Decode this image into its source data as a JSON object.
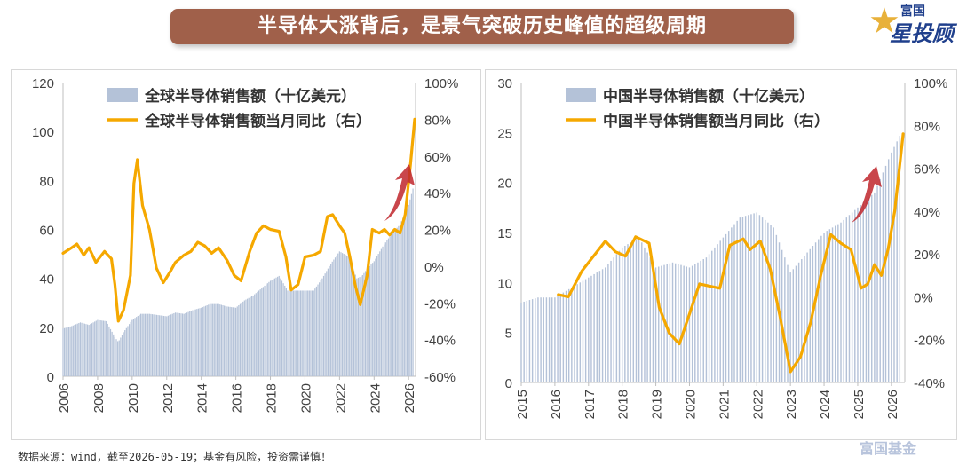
{
  "header": {
    "title": "半导体大涨背后，是景气突破历史峰值的超级周期"
  },
  "brand": {
    "small": "富国",
    "big": "星投顾",
    "watermark": "富国基金"
  },
  "footnote": "数据来源：wind，截至2026-05-19；基金有风险，投资需谨慎！",
  "colors": {
    "bar": "#b4c2d8",
    "line": "#f5a800",
    "arrow": "#c0262c",
    "title_bg": "#a0604a"
  },
  "chart_data": [
    {
      "type": "bar+line",
      "legend": [
        "全球半导体销售额（十亿美元）",
        "全球半导体销售额当月同比（右）"
      ],
      "x_ticks": [
        "2006",
        "2008",
        "2010",
        "2012",
        "2014",
        "2016",
        "2018",
        "2020",
        "2022",
        "2024",
        "2026"
      ],
      "x_range": [
        2006,
        2026.4
      ],
      "y_left_ticks": [
        "0",
        "20",
        "40",
        "60",
        "80",
        "100",
        "120"
      ],
      "y_left_range": [
        0,
        120
      ],
      "y_right_ticks": [
        "-60%",
        "-40%",
        "-20%",
        "0%",
        "20%",
        "40%",
        "60%",
        "80%",
        "100%"
      ],
      "y_right_range": [
        -60,
        100
      ],
      "bar_points": [
        [
          2006,
          19.5
        ],
        [
          2006.5,
          20.5
        ],
        [
          2007,
          22
        ],
        [
          2007.5,
          21
        ],
        [
          2008,
          23
        ],
        [
          2008.5,
          22.5
        ],
        [
          2009,
          16
        ],
        [
          2009.2,
          14
        ],
        [
          2009.5,
          18
        ],
        [
          2010,
          23
        ],
        [
          2010.5,
          25.5
        ],
        [
          2011,
          25.5
        ],
        [
          2011.5,
          25
        ],
        [
          2012,
          24.5
        ],
        [
          2012.5,
          26
        ],
        [
          2013,
          25.5
        ],
        [
          2013.5,
          27
        ],
        [
          2014,
          28
        ],
        [
          2014.5,
          29.5
        ],
        [
          2015,
          29.5
        ],
        [
          2015.5,
          28.5
        ],
        [
          2016,
          28
        ],
        [
          2016.5,
          31
        ],
        [
          2017,
          33
        ],
        [
          2017.5,
          36
        ],
        [
          2018,
          39
        ],
        [
          2018.5,
          41
        ],
        [
          2019,
          35
        ],
        [
          2019.5,
          35
        ],
        [
          2020,
          35
        ],
        [
          2020.5,
          35
        ],
        [
          2021,
          40
        ],
        [
          2021.5,
          46
        ],
        [
          2022,
          51
        ],
        [
          2022.5,
          49
        ],
        [
          2023,
          40
        ],
        [
          2023.3,
          41
        ],
        [
          2023.5,
          43
        ],
        [
          2024,
          47
        ],
        [
          2024.5,
          53
        ],
        [
          2025,
          58
        ],
        [
          2025.5,
          62
        ],
        [
          2026,
          70
        ],
        [
          2026.3,
          78
        ]
      ],
      "line_points": [
        [
          2006,
          7
        ],
        [
          2006.5,
          10
        ],
        [
          2006.8,
          12
        ],
        [
          2007.2,
          6
        ],
        [
          2007.5,
          10
        ],
        [
          2007.9,
          2
        ],
        [
          2008.4,
          8
        ],
        [
          2008.8,
          4
        ],
        [
          2009,
          -10
        ],
        [
          2009.2,
          -30
        ],
        [
          2009.5,
          -24
        ],
        [
          2009.9,
          -5
        ],
        [
          2010.1,
          45
        ],
        [
          2010.3,
          58
        ],
        [
          2010.6,
          33
        ],
        [
          2011,
          20
        ],
        [
          2011.4,
          -1
        ],
        [
          2011.8,
          -9
        ],
        [
          2012.2,
          -3
        ],
        [
          2012.5,
          2
        ],
        [
          2013,
          6
        ],
        [
          2013.4,
          8
        ],
        [
          2013.8,
          13
        ],
        [
          2014.2,
          11
        ],
        [
          2014.6,
          7
        ],
        [
          2015,
          10
        ],
        [
          2015.5,
          3
        ],
        [
          2015.9,
          -5
        ],
        [
          2016.3,
          -8
        ],
        [
          2016.8,
          8
        ],
        [
          2017.2,
          18
        ],
        [
          2017.6,
          22
        ],
        [
          2018,
          20
        ],
        [
          2018.5,
          19
        ],
        [
          2018.9,
          5
        ],
        [
          2019.2,
          -13
        ],
        [
          2019.6,
          -10
        ],
        [
          2020,
          5
        ],
        [
          2020.5,
          6
        ],
        [
          2020.9,
          8
        ],
        [
          2021.3,
          27
        ],
        [
          2021.6,
          28
        ],
        [
          2022,
          22
        ],
        [
          2022.3,
          18
        ],
        [
          2022.6,
          5
        ],
        [
          2022.9,
          -10
        ],
        [
          2023.2,
          -21
        ],
        [
          2023.6,
          -5
        ],
        [
          2023.9,
          20
        ],
        [
          2024.3,
          18
        ],
        [
          2024.6,
          20
        ],
        [
          2024.9,
          17
        ],
        [
          2025.2,
          20
        ],
        [
          2025.5,
          18
        ],
        [
          2025.8,
          28
        ],
        [
          2026.1,
          55
        ],
        [
          2026.35,
          80
        ]
      ],
      "arrow_label": ""
    },
    {
      "type": "bar+line",
      "legend": [
        "中国半导体销售额（十亿美元）",
        "中国半导体销售额当月同比（右）"
      ],
      "x_ticks": [
        "2015",
        "2016",
        "2017",
        "2018",
        "2019",
        "2020",
        "2021",
        "2022",
        "2023",
        "2024",
        "2025",
        "2026"
      ],
      "x_range": [
        2015,
        2026.4
      ],
      "y_left_ticks": [
        "0",
        "5",
        "10",
        "15",
        "20",
        "25",
        "30"
      ],
      "y_left_range": [
        0,
        30
      ],
      "y_right_ticks": [
        "-40%",
        "-20%",
        "0%",
        "20%",
        "40%",
        "60%",
        "80%",
        "100%"
      ],
      "y_right_range": [
        -40,
        100
      ],
      "bar_points": [
        [
          2015,
          8
        ],
        [
          2015.5,
          8.5
        ],
        [
          2016,
          8.5
        ],
        [
          2016.5,
          9.5
        ],
        [
          2017,
          10.5
        ],
        [
          2017.5,
          11.5
        ],
        [
          2018,
          13.5
        ],
        [
          2018.5,
          14.5
        ],
        [
          2019,
          11.5
        ],
        [
          2019.5,
          12
        ],
        [
          2020,
          11.5
        ],
        [
          2020.5,
          12.5
        ],
        [
          2021,
          14.5
        ],
        [
          2021.5,
          16.5
        ],
        [
          2022,
          17
        ],
        [
          2022.5,
          15.5
        ],
        [
          2023,
          11
        ],
        [
          2023.5,
          13
        ],
        [
          2024,
          15
        ],
        [
          2024.5,
          16
        ],
        [
          2025,
          17.5
        ],
        [
          2025.5,
          19
        ],
        [
          2026,
          23
        ],
        [
          2026.3,
          25
        ]
      ],
      "line_points": [
        [
          2016.1,
          1
        ],
        [
          2016.4,
          0
        ],
        [
          2016.8,
          12
        ],
        [
          2017.2,
          20
        ],
        [
          2017.5,
          26
        ],
        [
          2017.8,
          21
        ],
        [
          2018.1,
          19
        ],
        [
          2018.4,
          28
        ],
        [
          2018.8,
          25
        ],
        [
          2019.1,
          -5
        ],
        [
          2019.4,
          -17
        ],
        [
          2019.7,
          -22
        ],
        [
          2020,
          -8
        ],
        [
          2020.3,
          6
        ],
        [
          2020.6,
          5
        ],
        [
          2020.9,
          4
        ],
        [
          2021.2,
          24
        ],
        [
          2021.6,
          27
        ],
        [
          2021.8,
          22
        ],
        [
          2022.1,
          26
        ],
        [
          2022.4,
          13
        ],
        [
          2022.7,
          -10
        ],
        [
          2023,
          -35
        ],
        [
          2023.3,
          -28
        ],
        [
          2023.6,
          -12
        ],
        [
          2023.9,
          10
        ],
        [
          2024.2,
          29
        ],
        [
          2024.5,
          25
        ],
        [
          2024.8,
          22
        ],
        [
          2025.1,
          4
        ],
        [
          2025.3,
          6
        ],
        [
          2025.5,
          15
        ],
        [
          2025.7,
          10
        ],
        [
          2025.9,
          22
        ],
        [
          2026.1,
          40
        ],
        [
          2026.35,
          76
        ]
      ],
      "arrow_label": ""
    }
  ]
}
